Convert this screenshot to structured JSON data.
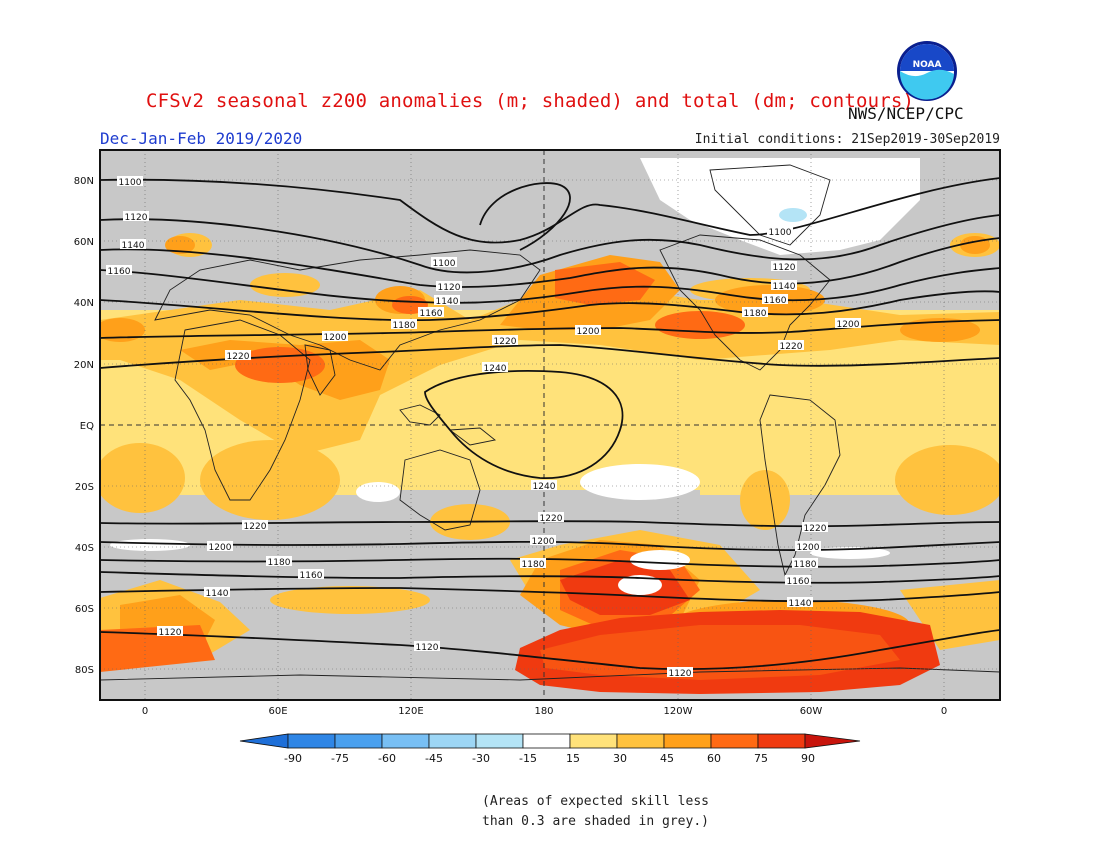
{
  "title": "CFSv2 seasonal z200 anomalies (m; shaded) and total (dm; contours)",
  "agency": "NWS/NCEP/CPC",
  "logo_text": "NOAA",
  "season": "Dec-Jan-Feb 2019/2020",
  "initial_conditions": "Initial conditions: 21Sep2019-30Sep2019",
  "lat_labels": [
    "80N",
    "60N",
    "40N",
    "20N",
    "EQ",
    "20S",
    "40S",
    "60S",
    "80S"
  ],
  "lon_labels": [
    "0",
    "60E",
    "120E",
    "180",
    "120W",
    "60W",
    "0"
  ],
  "contour_labels": [
    "1100",
    "1120",
    "1140",
    "1160",
    "1180",
    "1200",
    "1220",
    "1240"
  ],
  "colorbar": {
    "ticks": [
      "-90",
      "-75",
      "-60",
      "-45",
      "-30",
      "-15",
      "15",
      "30",
      "45",
      "60",
      "75",
      "90"
    ],
    "colors": [
      "#1e6fd8",
      "#2f86e6",
      "#4aa0ee",
      "#78bff4",
      "#b4e4f6",
      "#ffffff",
      "#ffe27a",
      "#ffc23e",
      "#ffa01a",
      "#ff6a14",
      "#f03a10",
      "#c8140c"
    ]
  },
  "note_line1": "(Areas of expected skill less",
  "note_line2": "than 0.3 are shaded in grey.)",
  "colors": {
    "skill_grey": "#c8c8c8",
    "title_red": "#e01010",
    "season_blue": "#1e3ccf"
  }
}
